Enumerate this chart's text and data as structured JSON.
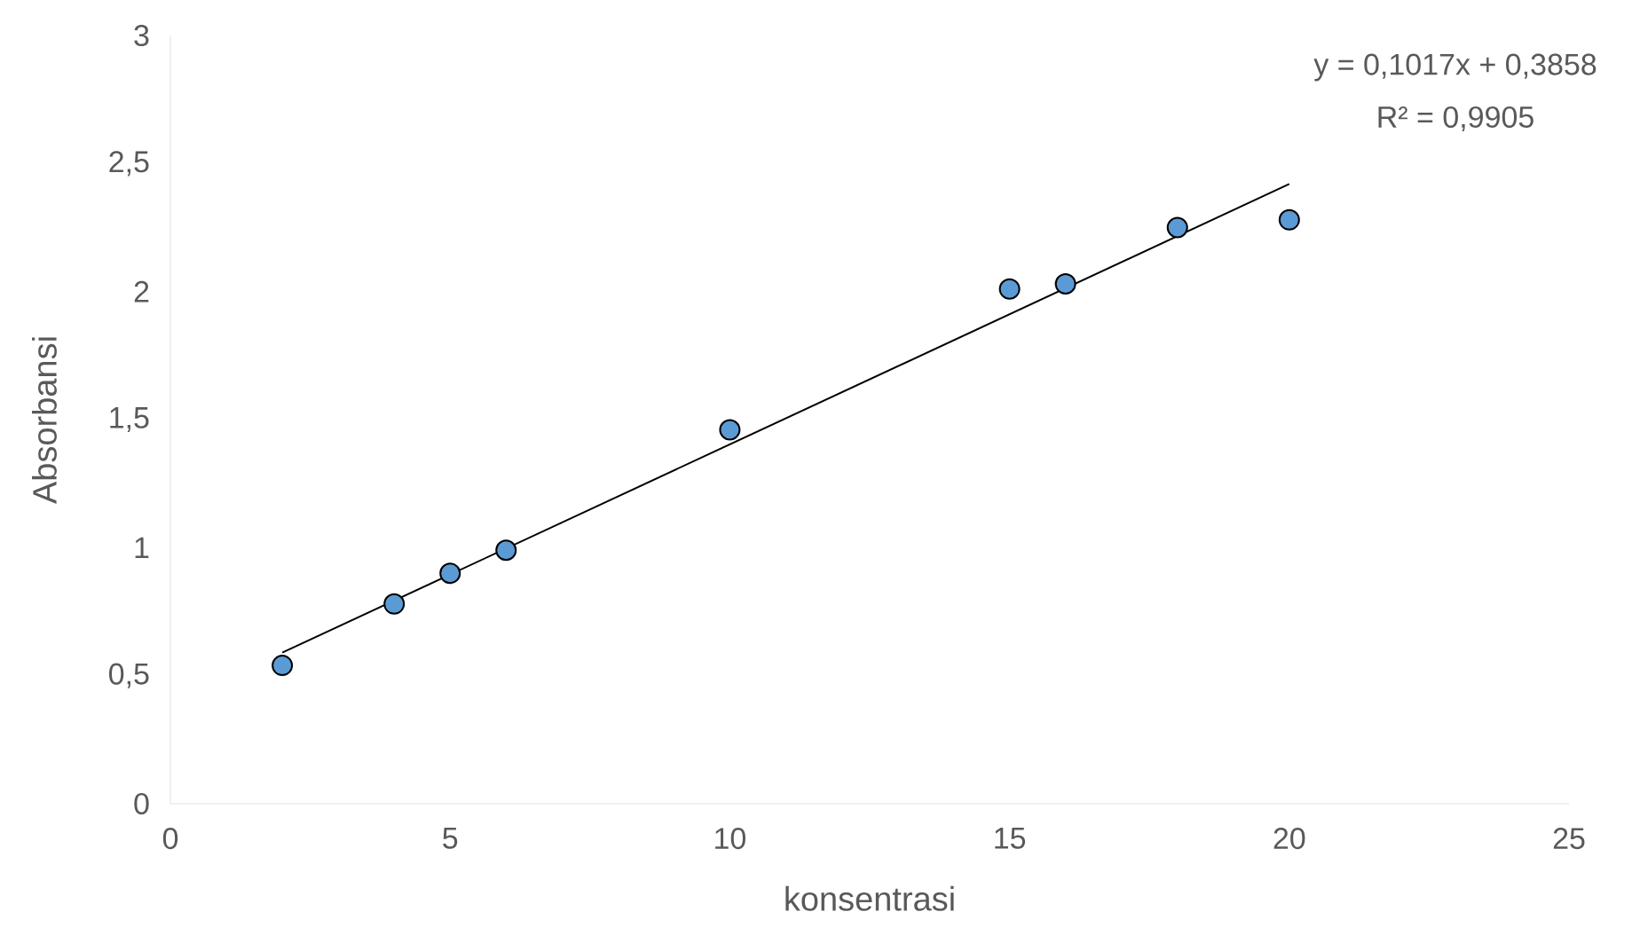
{
  "chart_data": {
    "type": "scatter",
    "xlabel": "konsentrasi",
    "ylabel": "Absorbansi",
    "annotations": [
      "y = 0,1017x + 0,3858",
      "R² = 0,9905"
    ],
    "marker": "circle",
    "xlim": [
      0,
      25
    ],
    "xticks": [
      0,
      5,
      10,
      15,
      20,
      25
    ],
    "ylim": [
      0,
      3
    ],
    "yticks": [
      0,
      {
        "value": 0.5,
        "label": "0,5"
      },
      1,
      {
        "value": 1.5,
        "label": "1,5"
      },
      2,
      {
        "value": 2.5,
        "label": "2,5"
      },
      3
    ],
    "series": [
      {
        "color": "#5b9bd5",
        "x": [
          2,
          4,
          5,
          6,
          10,
          15,
          16,
          18,
          20
        ],
        "values": [
          0.54,
          0.78,
          0.9,
          0.99,
          1.46,
          2.01,
          2.03,
          2.25,
          2.28
        ]
      },
      {
        "type": "line",
        "color": "#000000",
        "marker": "none",
        "line_style": "solid",
        "x": [
          2,
          20
        ],
        "values": [
          0.59,
          2.42
        ]
      }
    ]
  }
}
